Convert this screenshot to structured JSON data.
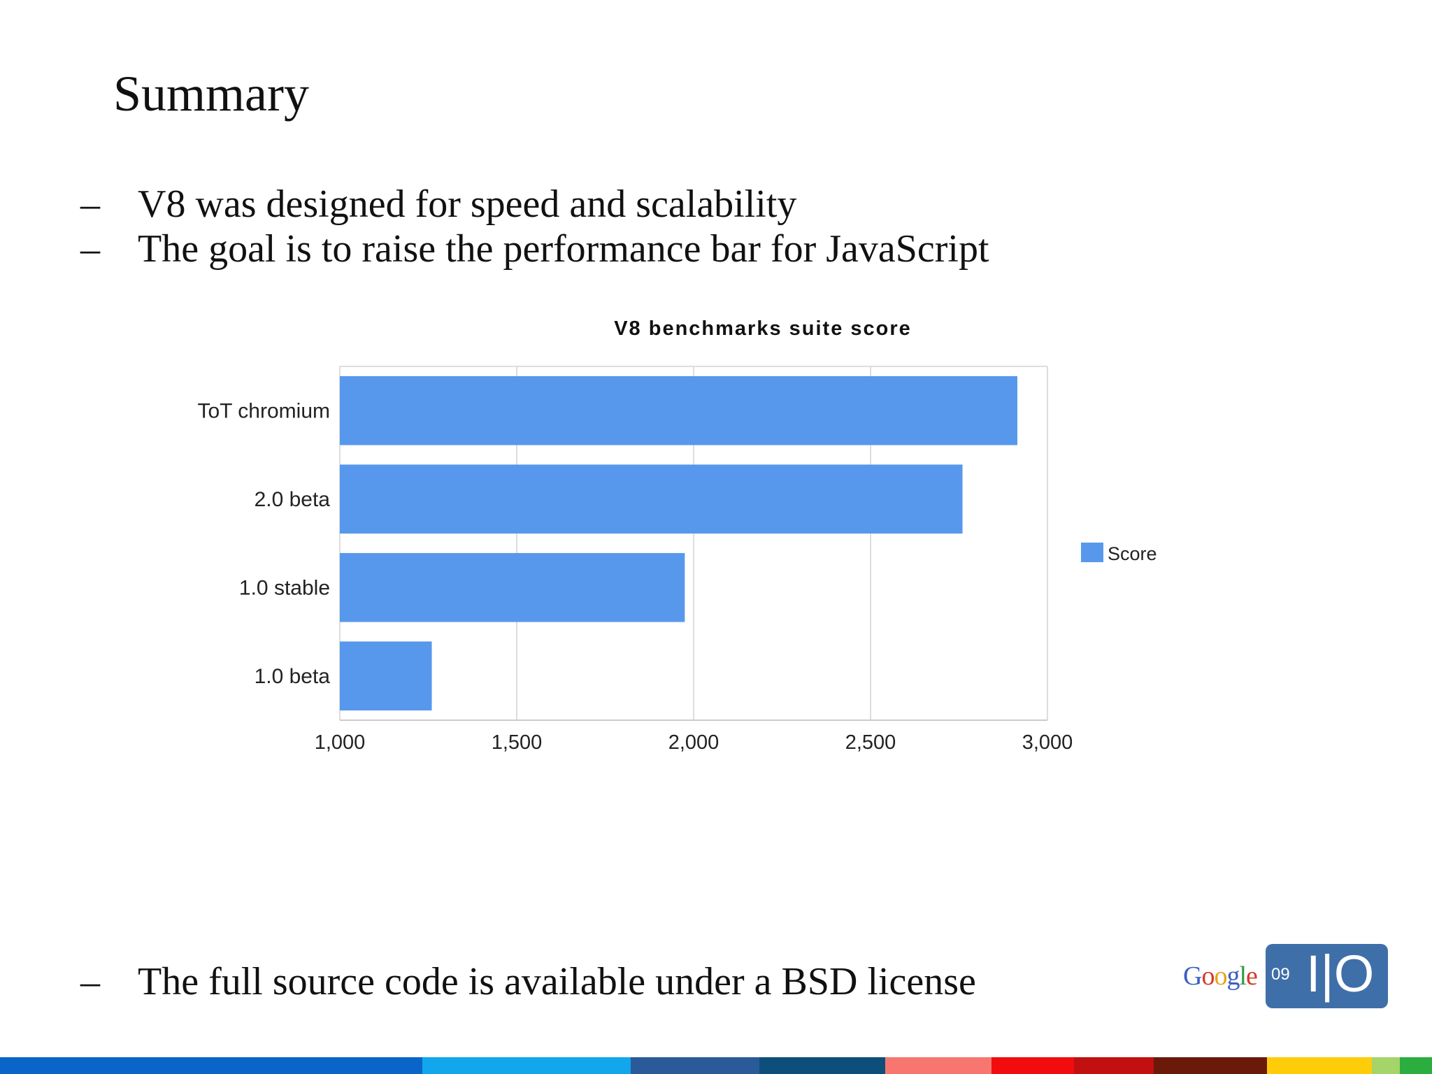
{
  "slide": {
    "title": "Summary",
    "bullets": [
      "V8 was designed for speed and scalability",
      "The goal is to raise the performance bar for JavaScript"
    ],
    "footer_bullet": "The full source code is available under a BSD license",
    "dash": "–"
  },
  "logo": {
    "google": [
      "G",
      "o",
      "o",
      "g",
      "l",
      "e"
    ],
    "google_colors": [
      "#3b5fc0",
      "#d43a2a",
      "#e8a31a",
      "#3b5fc0",
      "#2e9a42",
      "#d43a2a"
    ],
    "year": "09",
    "io": "I|O"
  },
  "chart_data": {
    "type": "bar",
    "orientation": "horizontal",
    "title": "V8 benchmarks suite score",
    "categories": [
      "ToT chromium",
      "2.0 beta",
      "1.0 stable",
      "1.0 beta"
    ],
    "series": [
      {
        "name": "Score",
        "values": [
          2915,
          2760,
          1975,
          1260
        ],
        "color": "#5898ec"
      }
    ],
    "xlim": [
      1000,
      3000
    ],
    "xticks": [
      1000,
      1500,
      2000,
      2500,
      3000
    ],
    "xtick_labels": [
      "1,000",
      "1,500",
      "2,000",
      "2,500",
      "3,000"
    ],
    "xlabel": "",
    "ylabel": "",
    "grid": true,
    "legend": "right"
  },
  "stripe_colors": [
    "#0a65c8",
    "#12a7ec",
    "#2a5a9a",
    "#0d4f7a",
    "#f77770",
    "#f10d0d",
    "#c20f0f",
    "#6b1a0a",
    "#ffcc0a",
    "#a4d46a",
    "#2cad3f"
  ]
}
